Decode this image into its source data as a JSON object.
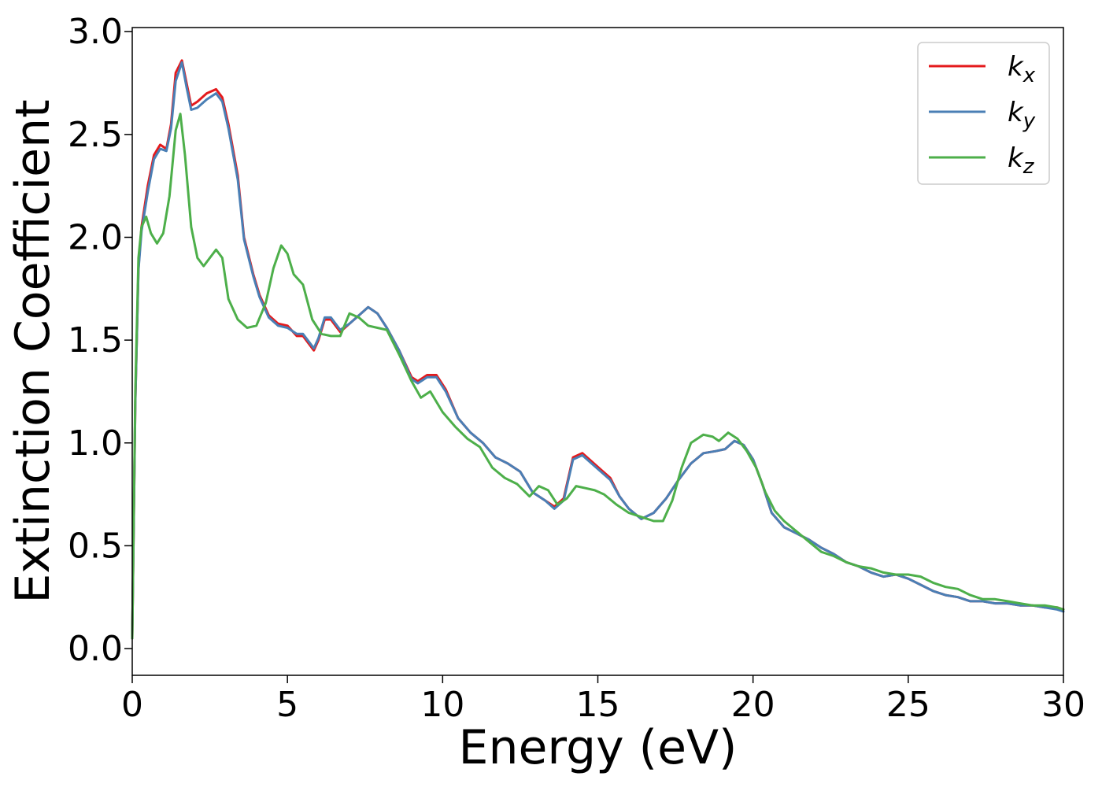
{
  "chart_data": {
    "type": "line",
    "title": "",
    "xlabel": "Energy (eV)",
    "ylabel": "Extinction Coefficient",
    "xlim": [
      0,
      30
    ],
    "ylim": [
      -0.13,
      3.02
    ],
    "xticks": [
      0,
      5,
      10,
      15,
      20,
      25,
      30
    ],
    "xtick_labels": [
      "0",
      "5",
      "10",
      "15",
      "20",
      "25",
      "30"
    ],
    "yticks": [
      0.0,
      0.5,
      1.0,
      1.5,
      2.0,
      2.5,
      3.0
    ],
    "ytick_labels": [
      "0.0",
      "0.5",
      "1.0",
      "1.5",
      "2.0",
      "2.5",
      "3.0"
    ],
    "grid": false,
    "legend_position": "top-right",
    "series": [
      {
        "name": "k_x",
        "label_base": "k",
        "label_sub": "x",
        "color": "#e41a1c",
        "x": [
          0.0,
          0.1,
          0.2,
          0.3,
          0.5,
          0.7,
          0.9,
          1.1,
          1.25,
          1.4,
          1.6,
          1.75,
          1.9,
          2.1,
          2.4,
          2.7,
          2.9,
          3.1,
          3.4,
          3.6,
          3.9,
          4.1,
          4.4,
          4.7,
          5.0,
          5.3,
          5.5,
          5.7,
          5.85,
          6.0,
          6.2,
          6.4,
          6.7,
          7.0,
          7.3,
          7.6,
          7.9,
          8.2,
          8.6,
          9.0,
          9.2,
          9.5,
          9.8,
          10.1,
          10.5,
          10.9,
          11.3,
          11.7,
          12.1,
          12.5,
          12.9,
          13.3,
          13.6,
          13.9,
          14.2,
          14.5,
          14.8,
          15.1,
          15.4,
          15.7,
          16.0,
          16.4,
          16.8,
          17.2,
          17.6,
          18.0,
          18.4,
          18.8,
          19.1,
          19.4,
          19.7,
          20.0,
          20.3,
          20.6,
          21.0,
          21.4,
          21.8,
          22.2,
          22.6,
          23.0,
          23.4,
          23.8,
          24.2,
          24.6,
          25.0,
          25.4,
          25.8,
          26.2,
          26.6,
          27.0,
          27.4,
          27.8,
          28.2,
          28.6,
          29.0,
          29.4,
          29.8,
          30.0
        ],
        "y": [
          0.05,
          1.2,
          1.85,
          2.05,
          2.25,
          2.4,
          2.45,
          2.43,
          2.55,
          2.8,
          2.86,
          2.75,
          2.64,
          2.66,
          2.7,
          2.72,
          2.68,
          2.55,
          2.3,
          2.0,
          1.82,
          1.72,
          1.62,
          1.58,
          1.57,
          1.52,
          1.52,
          1.48,
          1.45,
          1.5,
          1.6,
          1.6,
          1.54,
          1.58,
          1.62,
          1.66,
          1.63,
          1.56,
          1.45,
          1.32,
          1.3,
          1.33,
          1.33,
          1.26,
          1.12,
          1.05,
          1.0,
          0.93,
          0.9,
          0.86,
          0.76,
          0.72,
          0.69,
          0.73,
          0.93,
          0.95,
          0.91,
          0.87,
          0.83,
          0.74,
          0.68,
          0.63,
          0.66,
          0.73,
          0.82,
          0.9,
          0.95,
          0.96,
          0.97,
          1.01,
          0.99,
          0.92,
          0.8,
          0.66,
          0.59,
          0.56,
          0.53,
          0.49,
          0.46,
          0.42,
          0.4,
          0.37,
          0.35,
          0.36,
          0.34,
          0.31,
          0.28,
          0.26,
          0.25,
          0.23,
          0.23,
          0.22,
          0.22,
          0.21,
          0.21,
          0.2,
          0.2,
          0.19
        ]
      },
      {
        "name": "k_y",
        "label_base": "k",
        "label_sub": "y",
        "color": "#4a7fb5",
        "x": [
          0.0,
          0.1,
          0.2,
          0.3,
          0.5,
          0.7,
          0.9,
          1.1,
          1.25,
          1.4,
          1.6,
          1.75,
          1.9,
          2.1,
          2.4,
          2.7,
          2.9,
          3.1,
          3.4,
          3.6,
          3.9,
          4.1,
          4.4,
          4.7,
          5.0,
          5.3,
          5.5,
          5.7,
          5.85,
          6.0,
          6.2,
          6.4,
          6.7,
          7.0,
          7.3,
          7.6,
          7.9,
          8.2,
          8.6,
          9.0,
          9.2,
          9.5,
          9.8,
          10.1,
          10.5,
          10.9,
          11.3,
          11.7,
          12.1,
          12.5,
          12.9,
          13.3,
          13.6,
          13.9,
          14.2,
          14.5,
          14.8,
          15.1,
          15.4,
          15.7,
          16.0,
          16.4,
          16.8,
          17.2,
          17.6,
          18.0,
          18.4,
          18.8,
          19.1,
          19.4,
          19.7,
          20.0,
          20.3,
          20.6,
          21.0,
          21.4,
          21.8,
          22.2,
          22.6,
          23.0,
          23.4,
          23.8,
          24.2,
          24.6,
          25.0,
          25.4,
          25.8,
          26.2,
          26.6,
          27.0,
          27.4,
          27.8,
          28.2,
          28.6,
          29.0,
          29.4,
          29.8,
          30.0
        ],
        "y": [
          0.05,
          1.2,
          1.84,
          2.03,
          2.22,
          2.38,
          2.43,
          2.42,
          2.53,
          2.76,
          2.85,
          2.73,
          2.62,
          2.63,
          2.67,
          2.7,
          2.66,
          2.53,
          2.28,
          1.99,
          1.81,
          1.71,
          1.61,
          1.57,
          1.56,
          1.53,
          1.53,
          1.49,
          1.46,
          1.51,
          1.61,
          1.61,
          1.55,
          1.58,
          1.62,
          1.66,
          1.63,
          1.56,
          1.45,
          1.31,
          1.29,
          1.32,
          1.32,
          1.25,
          1.12,
          1.05,
          1.0,
          0.93,
          0.9,
          0.86,
          0.76,
          0.72,
          0.68,
          0.72,
          0.92,
          0.94,
          0.9,
          0.86,
          0.82,
          0.74,
          0.68,
          0.63,
          0.66,
          0.73,
          0.82,
          0.9,
          0.95,
          0.96,
          0.97,
          1.01,
          0.99,
          0.92,
          0.8,
          0.66,
          0.59,
          0.56,
          0.53,
          0.49,
          0.46,
          0.42,
          0.4,
          0.37,
          0.35,
          0.36,
          0.34,
          0.31,
          0.28,
          0.26,
          0.25,
          0.23,
          0.23,
          0.22,
          0.22,
          0.21,
          0.21,
          0.2,
          0.19,
          0.18
        ]
      },
      {
        "name": "k_z",
        "label_base": "k",
        "label_sub": "z",
        "color": "#4daf4a",
        "x": [
          0.0,
          0.1,
          0.2,
          0.3,
          0.45,
          0.6,
          0.8,
          1.0,
          1.2,
          1.4,
          1.55,
          1.7,
          1.9,
          2.1,
          2.3,
          2.5,
          2.7,
          2.9,
          3.1,
          3.4,
          3.7,
          4.0,
          4.3,
          4.55,
          4.8,
          5.0,
          5.2,
          5.5,
          5.8,
          6.1,
          6.4,
          6.7,
          7.0,
          7.3,
          7.6,
          7.9,
          8.2,
          8.6,
          9.0,
          9.3,
          9.6,
          10.0,
          10.4,
          10.8,
          11.2,
          11.6,
          12.0,
          12.4,
          12.8,
          13.1,
          13.4,
          13.7,
          14.0,
          14.3,
          14.6,
          14.9,
          15.2,
          15.6,
          16.0,
          16.4,
          16.8,
          17.1,
          17.4,
          17.7,
          18.0,
          18.4,
          18.7,
          18.9,
          19.2,
          19.5,
          19.8,
          20.1,
          20.4,
          20.7,
          21.0,
          21.4,
          21.8,
          22.2,
          22.6,
          23.0,
          23.4,
          23.8,
          24.2,
          24.6,
          25.0,
          25.4,
          25.8,
          26.2,
          26.6,
          27.0,
          27.4,
          27.8,
          28.2,
          28.6,
          29.0,
          29.4,
          29.8,
          30.0
        ],
        "y": [
          0.05,
          1.25,
          1.9,
          2.05,
          2.1,
          2.02,
          1.97,
          2.02,
          2.2,
          2.52,
          2.6,
          2.4,
          2.05,
          1.9,
          1.86,
          1.9,
          1.94,
          1.9,
          1.7,
          1.6,
          1.56,
          1.57,
          1.68,
          1.85,
          1.96,
          1.92,
          1.82,
          1.77,
          1.6,
          1.53,
          1.52,
          1.52,
          1.63,
          1.61,
          1.57,
          1.56,
          1.55,
          1.43,
          1.3,
          1.22,
          1.25,
          1.15,
          1.08,
          1.02,
          0.98,
          0.88,
          0.83,
          0.8,
          0.74,
          0.79,
          0.77,
          0.7,
          0.73,
          0.79,
          0.78,
          0.77,
          0.75,
          0.7,
          0.66,
          0.64,
          0.62,
          0.62,
          0.72,
          0.88,
          1.0,
          1.04,
          1.03,
          1.01,
          1.05,
          1.02,
          0.96,
          0.88,
          0.76,
          0.67,
          0.62,
          0.57,
          0.52,
          0.47,
          0.45,
          0.42,
          0.4,
          0.39,
          0.37,
          0.36,
          0.36,
          0.35,
          0.32,
          0.3,
          0.29,
          0.26,
          0.24,
          0.24,
          0.23,
          0.22,
          0.21,
          0.21,
          0.2,
          0.19
        ]
      }
    ]
  }
}
